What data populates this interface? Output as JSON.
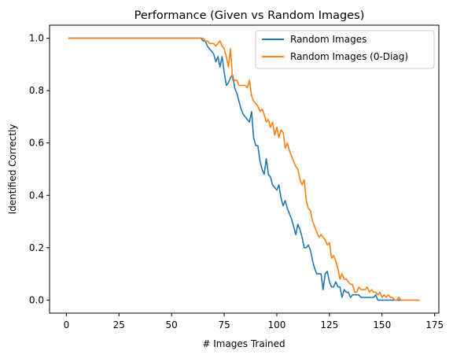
{
  "chart_data": {
    "type": "line",
    "title": "Performance (Given vs Random Images)",
    "xlabel": "# Images Trained",
    "ylabel": "Identified Correctly",
    "xlim": [
      -8,
      177
    ],
    "ylim": [
      -0.05,
      1.05
    ],
    "xticks": [
      0,
      25,
      50,
      75,
      100,
      125,
      150,
      175
    ],
    "yticks": [
      0.0,
      0.2,
      0.4,
      0.6,
      0.8,
      1.0
    ],
    "xtick_labels": [
      "0",
      "25",
      "50",
      "75",
      "100",
      "125",
      "150",
      "175"
    ],
    "ytick_labels": [
      "0.0",
      "0.2",
      "0.4",
      "0.6",
      "0.8",
      "1.0"
    ],
    "grid": false,
    "legend_position": "upper-right",
    "colors": {
      "random": "#1f77b4",
      "zerodiag": "#ff7f0e"
    },
    "series": [
      {
        "name": "Random Images",
        "x": [
          1,
          60,
          64,
          65,
          66,
          67,
          68,
          69,
          70,
          71,
          72,
          73,
          74,
          75,
          76,
          77,
          78,
          79,
          80,
          81,
          82,
          83,
          84,
          85,
          86,
          87,
          88,
          89,
          90,
          91,
          92,
          93,
          94,
          95,
          96,
          97,
          98,
          99,
          100,
          101,
          102,
          103,
          104,
          105,
          106,
          107,
          108,
          109,
          110,
          111,
          112,
          113,
          114,
          115,
          116,
          117,
          118,
          119,
          120,
          121,
          122,
          123,
          124,
          125,
          126,
          127,
          128,
          129,
          130,
          131,
          132,
          133,
          134,
          135,
          136,
          137,
          138,
          139,
          140,
          141,
          142,
          143,
          144,
          145,
          146,
          147,
          148,
          149,
          150,
          151,
          152,
          153,
          154,
          155,
          156,
          157,
          158,
          159
        ],
        "y": [
          1.0,
          1.0,
          1.0,
          0.99,
          0.99,
          0.97,
          0.96,
          0.95,
          0.94,
          0.91,
          0.93,
          0.89,
          0.93,
          0.87,
          0.82,
          0.83,
          0.85,
          0.86,
          0.81,
          0.79,
          0.76,
          0.73,
          0.71,
          0.7,
          0.69,
          0.68,
          0.72,
          0.62,
          0.59,
          0.59,
          0.53,
          0.5,
          0.48,
          0.54,
          0.48,
          0.47,
          0.44,
          0.43,
          0.42,
          0.44,
          0.39,
          0.36,
          0.38,
          0.35,
          0.33,
          0.31,
          0.28,
          0.25,
          0.29,
          0.27,
          0.24,
          0.2,
          0.2,
          0.21,
          0.19,
          0.15,
          0.12,
          0.1,
          0.1,
          0.1,
          0.04,
          0.1,
          0.11,
          0.07,
          0.05,
          0.05,
          0.07,
          0.05,
          0.05,
          0.01,
          0.04,
          0.03,
          0.03,
          0.01,
          0.02,
          0.02,
          0.02,
          0.02,
          0.01,
          0.01,
          0.01,
          0.01,
          0.01,
          0.01,
          0.01,
          0.02,
          0.0,
          0.0,
          0.0,
          0.0,
          0.0,
          0.0,
          0.0,
          0.0,
          0.0,
          0.0,
          0.0,
          0.0
        ]
      },
      {
        "name": "Random Images (0-Diag)",
        "x": [
          1,
          64,
          65,
          66,
          67,
          68,
          69,
          70,
          71,
          72,
          73,
          74,
          75,
          76,
          77,
          78,
          79,
          80,
          81,
          82,
          83,
          84,
          85,
          86,
          87,
          88,
          89,
          90,
          91,
          92,
          93,
          94,
          95,
          96,
          97,
          98,
          99,
          100,
          101,
          102,
          103,
          104,
          105,
          106,
          107,
          108,
          109,
          110,
          111,
          112,
          113,
          114,
          115,
          116,
          117,
          118,
          119,
          120,
          121,
          122,
          123,
          124,
          125,
          126,
          127,
          128,
          129,
          130,
          131,
          132,
          133,
          134,
          135,
          136,
          137,
          138,
          139,
          140,
          141,
          142,
          143,
          144,
          145,
          146,
          147,
          148,
          149,
          150,
          151,
          152,
          153,
          154,
          155,
          156,
          157,
          158,
          159,
          160,
          165,
          168
        ],
        "y": [
          1.0,
          1.0,
          1.0,
          0.99,
          0.99,
          0.98,
          0.98,
          0.98,
          0.97,
          0.98,
          0.99,
          0.97,
          0.96,
          0.93,
          0.89,
          0.96,
          0.84,
          0.84,
          0.84,
          0.82,
          0.82,
          0.82,
          0.82,
          0.81,
          0.84,
          0.78,
          0.76,
          0.75,
          0.74,
          0.72,
          0.73,
          0.71,
          0.68,
          0.69,
          0.66,
          0.68,
          0.63,
          0.66,
          0.62,
          0.65,
          0.64,
          0.58,
          0.6,
          0.57,
          0.55,
          0.53,
          0.51,
          0.5,
          0.46,
          0.44,
          0.46,
          0.38,
          0.35,
          0.34,
          0.3,
          0.28,
          0.26,
          0.24,
          0.25,
          0.24,
          0.23,
          0.21,
          0.22,
          0.16,
          0.17,
          0.15,
          0.12,
          0.08,
          0.1,
          0.08,
          0.08,
          0.07,
          0.06,
          0.06,
          0.03,
          0.03,
          0.05,
          0.04,
          0.04,
          0.04,
          0.05,
          0.03,
          0.04,
          0.03,
          0.03,
          0.02,
          0.03,
          0.01,
          0.02,
          0.01,
          0.02,
          0.01,
          0.01,
          0.0,
          0.0,
          0.01,
          0.0,
          0.0,
          0.0,
          0.0
        ]
      }
    ]
  }
}
